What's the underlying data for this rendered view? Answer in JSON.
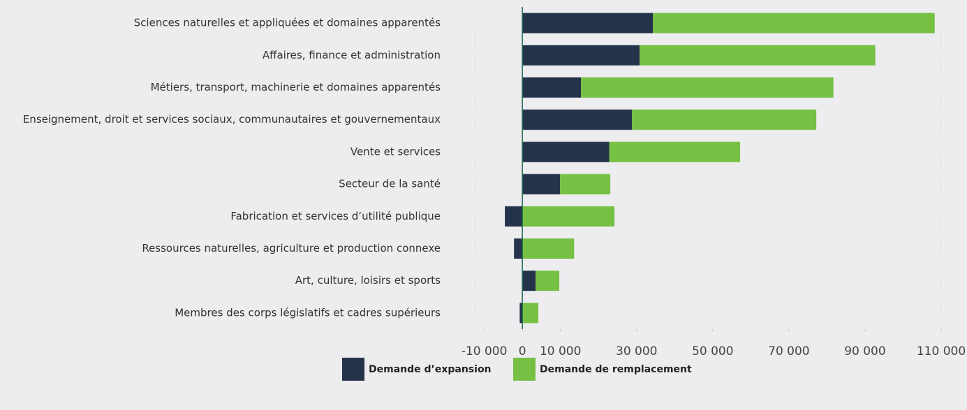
{
  "chart_data": {
    "type": "bar",
    "orientation": "horizontal",
    "stacked": true,
    "categories": [
      "Sciences naturelles et appliquées et domaines apparentés",
      "Affaires, finance et administration",
      "Métiers, transport, machinerie et domaines apparentés",
      "Enseignement, droit et services sociaux, communautaires et gouvernementaux",
      "Vente et services",
      "Secteur de la santé",
      "Fabrication et services d’utilité publique",
      "Ressources naturelles, agriculture et production connexe",
      "Art, culture, loisirs et sports",
      "Membres des corps législatifs et cadres supérieurs"
    ],
    "series": [
      {
        "name": "Demande d’expansion",
        "color": "#25334a",
        "values": [
          34300,
          30800,
          15400,
          28800,
          22800,
          9900,
          -4600,
          -2200,
          3500,
          -700
        ]
      },
      {
        "name": "Demande de remplacement",
        "color": "#76c043",
        "values": [
          74000,
          61900,
          66300,
          48400,
          34400,
          13200,
          24200,
          13600,
          6200,
          4200
        ]
      }
    ],
    "xlim": [
      -12500,
      110000
    ],
    "xticks": [
      {
        "value": -10000,
        "label": "-10 000"
      },
      0,
      {
        "value": 10000,
        "label": "10 000"
      },
      {
        "value": 30000,
        "label": "30 000"
      },
      {
        "value": 50000,
        "label": "50 000"
      },
      {
        "value": 70000,
        "label": "70 000"
      },
      {
        "value": 90000,
        "label": "90 000"
      },
      {
        "value": 110000,
        "label": "110 000"
      }
    ],
    "legend": "bottom"
  }
}
